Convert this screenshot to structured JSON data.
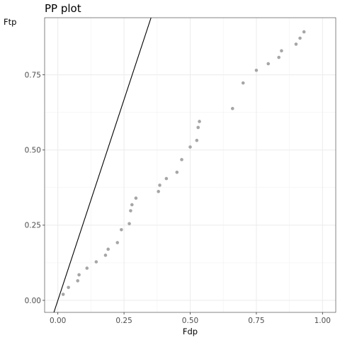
{
  "chart_data": {
    "type": "scatter",
    "title": "PP plot",
    "xlabel": "Fdp",
    "ylabel": "Ftp",
    "xlim": [
      -0.05,
      1.05
    ],
    "ylim": [
      -0.04,
      0.94
    ],
    "x_ticks": [
      0.0,
      0.25,
      0.5,
      0.75,
      1.0
    ],
    "x_tick_labels": [
      "0.00",
      "0.25",
      "0.50",
      "0.75",
      "1.00"
    ],
    "y_ticks": [
      0.0,
      0.25,
      0.5,
      0.75
    ],
    "y_tick_labels": [
      "0.00",
      "0.25",
      "0.50",
      "0.75"
    ],
    "grid": true,
    "legend": "none",
    "reference_line": {
      "intercept": 0.0,
      "slope": 2.67,
      "color": "#000000"
    },
    "series": [
      {
        "color": "#a6a6a6",
        "points": [
          [
            0.02,
            0.02
          ],
          [
            0.04,
            0.043
          ],
          [
            0.075,
            0.065
          ],
          [
            0.08,
            0.085
          ],
          [
            0.11,
            0.107
          ],
          [
            0.145,
            0.128
          ],
          [
            0.18,
            0.15
          ],
          [
            0.19,
            0.17
          ],
          [
            0.225,
            0.192
          ],
          [
            0.24,
            0.235
          ],
          [
            0.27,
            0.255
          ],
          [
            0.275,
            0.298
          ],
          [
            0.28,
            0.318
          ],
          [
            0.295,
            0.34
          ],
          [
            0.38,
            0.362
          ],
          [
            0.385,
            0.383
          ],
          [
            0.41,
            0.405
          ],
          [
            0.45,
            0.426
          ],
          [
            0.468,
            0.468
          ],
          [
            0.5,
            0.51
          ],
          [
            0.525,
            0.532
          ],
          [
            0.53,
            0.575
          ],
          [
            0.535,
            0.595
          ],
          [
            0.66,
            0.638
          ],
          [
            0.7,
            0.723
          ],
          [
            0.75,
            0.765
          ],
          [
            0.795,
            0.787
          ],
          [
            0.835,
            0.808
          ],
          [
            0.845,
            0.83
          ],
          [
            0.9,
            0.852
          ],
          [
            0.915,
            0.872
          ],
          [
            0.93,
            0.893
          ]
        ]
      }
    ]
  }
}
